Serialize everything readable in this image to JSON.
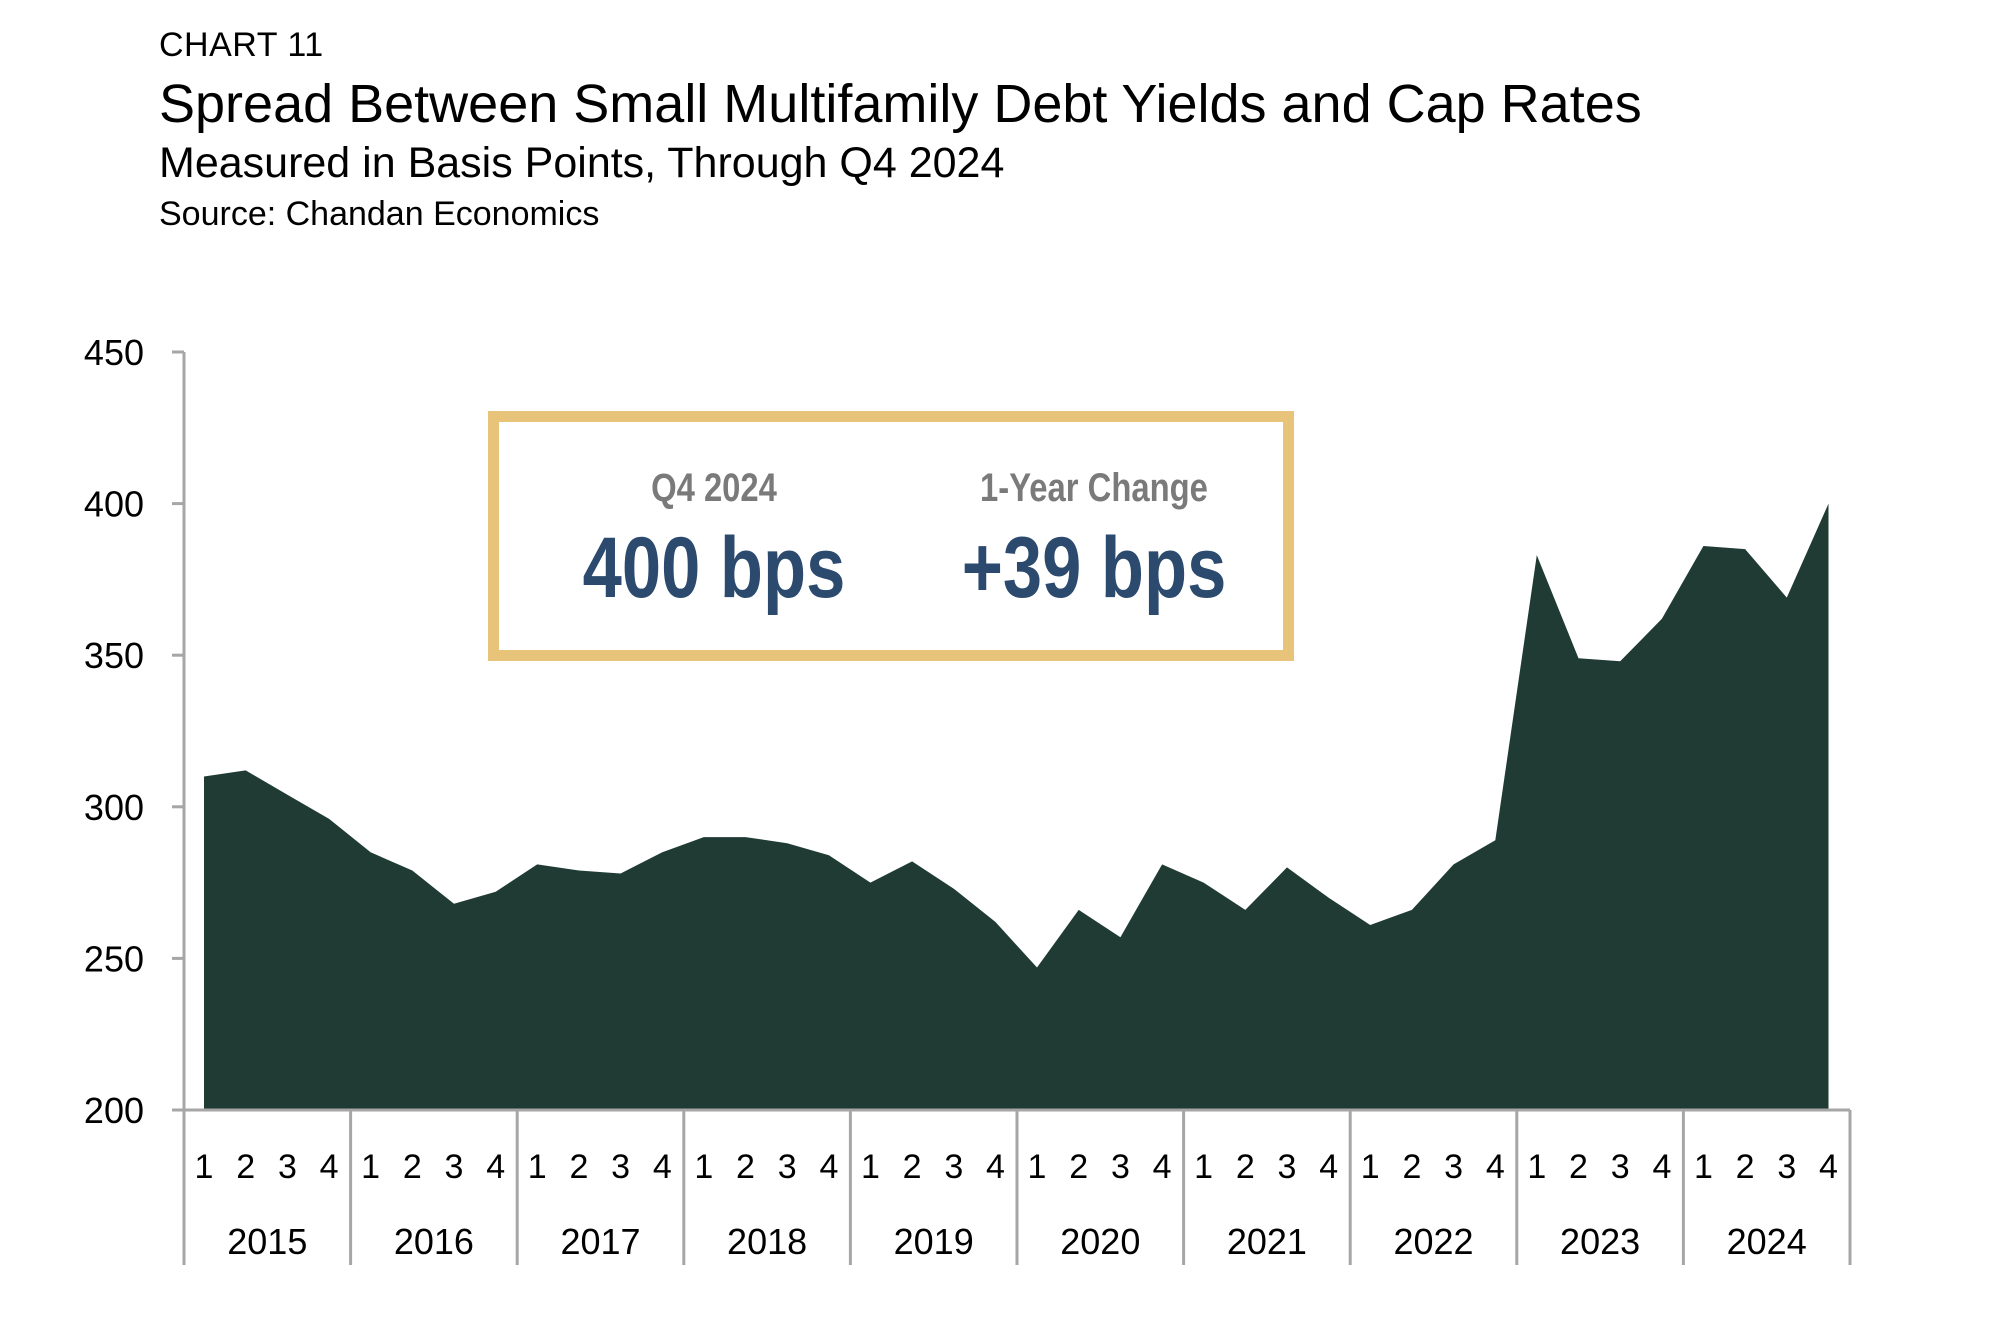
{
  "header": {
    "label": "CHART 11",
    "title": "Spread Between Small Multifamily Debt Yields and Cap Rates",
    "subtitle": "Measured in Basis Points, Through Q4 2024",
    "source": "Source: Chandan Economics"
  },
  "callout": {
    "left_label": "Q4 2024",
    "left_value": "400 bps",
    "right_label": "1-Year Change",
    "right_value": "+39 bps",
    "border_color": "#E8C47B",
    "value_color": "#2B4A6E"
  },
  "chart_data": {
    "type": "area",
    "title": "Spread Between Small Multifamily Debt Yields and Cap Rates",
    "subtitle": "Measured in Basis Points, Through Q4 2024",
    "xlabel": "",
    "ylabel": "",
    "ylim": [
      200,
      450
    ],
    "yticks": [
      200,
      250,
      300,
      350,
      400,
      450
    ],
    "years": [
      "2015",
      "2016",
      "2017",
      "2018",
      "2019",
      "2020",
      "2021",
      "2022",
      "2023",
      "2024"
    ],
    "quarters": [
      "1",
      "2",
      "3",
      "4"
    ],
    "fill_color": "#1F3B33",
    "grid": false,
    "legend": "none",
    "series": [
      {
        "values": [
          310,
          312,
          304,
          296,
          285,
          279,
          268,
          272,
          281,
          279,
          278,
          285,
          290,
          290,
          288,
          284,
          275,
          282,
          273,
          262,
          247,
          266,
          257,
          281,
          275,
          266,
          280,
          270,
          261,
          266,
          281,
          289,
          383,
          349,
          348,
          362,
          386,
          385,
          369,
          400
        ]
      }
    ]
  }
}
